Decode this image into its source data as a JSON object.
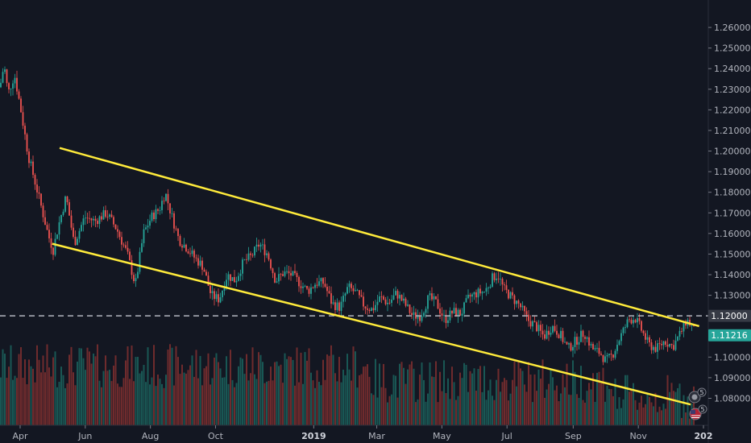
{
  "chart_data": {
    "type": "candlestick",
    "title": "",
    "y_axis": {
      "position": "right",
      "ticks": [
        "1.26000",
        "1.25000",
        "1.24000",
        "1.23000",
        "1.22000",
        "1.21000",
        "1.20000",
        "1.19000",
        "1.18000",
        "1.17000",
        "1.16000",
        "1.15000",
        "1.14000",
        "1.13000",
        "1.12000",
        "1.11000",
        "1.10000",
        "1.09000",
        "1.08000"
      ],
      "ylim": [
        1.0755,
        1.2655
      ]
    },
    "x_axis": {
      "ticks": [
        {
          "label": "Apr",
          "bold": false
        },
        {
          "label": "Jun",
          "bold": false
        },
        {
          "label": "Aug",
          "bold": false
        },
        {
          "label": "Oct",
          "bold": false
        },
        {
          "label": "2019",
          "bold": true
        },
        {
          "label": "Mar",
          "bold": false
        },
        {
          "label": "May",
          "bold": false
        },
        {
          "label": "Jul",
          "bold": false
        },
        {
          "label": "Sep",
          "bold": false
        },
        {
          "label": "Nov",
          "bold": false
        },
        {
          "label": "202",
          "bold": true
        }
      ]
    },
    "price_anchors": [
      [
        0,
        1.231
      ],
      [
        5,
        1.242
      ],
      [
        10,
        1.228
      ],
      [
        18,
        1.237
      ],
      [
        25,
        1.222
      ],
      [
        35,
        1.198
      ],
      [
        48,
        1.178
      ],
      [
        60,
        1.159
      ],
      [
        66,
        1.152
      ],
      [
        72,
        1.163
      ],
      [
        82,
        1.178
      ],
      [
        92,
        1.155
      ],
      [
        105,
        1.168
      ],
      [
        118,
        1.166
      ],
      [
        132,
        1.17
      ],
      [
        145,
        1.162
      ],
      [
        158,
        1.15
      ],
      [
        168,
        1.135
      ],
      [
        178,
        1.16
      ],
      [
        188,
        1.168
      ],
      [
        198,
        1.172
      ],
      [
        205,
        1.18
      ],
      [
        212,
        1.17
      ],
      [
        222,
        1.157
      ],
      [
        232,
        1.153
      ],
      [
        242,
        1.148
      ],
      [
        252,
        1.144
      ],
      [
        262,
        1.13
      ],
      [
        272,
        1.128
      ],
      [
        282,
        1.14
      ],
      [
        292,
        1.137
      ],
      [
        302,
        1.146
      ],
      [
        312,
        1.149
      ],
      [
        322,
        1.155
      ],
      [
        332,
        1.15
      ],
      [
        342,
        1.137
      ],
      [
        352,
        1.141
      ],
      [
        362,
        1.14
      ],
      [
        372,
        1.136
      ],
      [
        382,
        1.132
      ],
      [
        392,
        1.136
      ],
      [
        402,
        1.136
      ],
      [
        412,
        1.126
      ],
      [
        422,
        1.124
      ],
      [
        432,
        1.134
      ],
      [
        442,
        1.131
      ],
      [
        452,
        1.125
      ],
      [
        462,
        1.123
      ],
      [
        472,
        1.129
      ],
      [
        482,
        1.126
      ],
      [
        492,
        1.131
      ],
      [
        502,
        1.126
      ],
      [
        512,
        1.12
      ],
      [
        522,
        1.12
      ],
      [
        532,
        1.129
      ],
      [
        542,
        1.126
      ],
      [
        552,
        1.118
      ],
      [
        562,
        1.122
      ],
      [
        572,
        1.121
      ],
      [
        582,
        1.129
      ],
      [
        592,
        1.131
      ],
      [
        602,
        1.132
      ],
      [
        612,
        1.139
      ],
      [
        618,
        1.14
      ],
      [
        625,
        1.133
      ],
      [
        635,
        1.129
      ],
      [
        645,
        1.125
      ],
      [
        655,
        1.118
      ],
      [
        665,
        1.115
      ],
      [
        675,
        1.11
      ],
      [
        685,
        1.115
      ],
      [
        695,
        1.111
      ],
      [
        705,
        1.104
      ],
      [
        715,
        1.108
      ],
      [
        725,
        1.112
      ],
      [
        735,
        1.104
      ],
      [
        745,
        1.102
      ],
      [
        752,
        1.098
      ],
      [
        760,
        1.101
      ],
      [
        770,
        1.11
      ],
      [
        780,
        1.118
      ],
      [
        788,
        1.119
      ],
      [
        795,
        1.114
      ],
      [
        805,
        1.106
      ],
      [
        815,
        1.104
      ],
      [
        825,
        1.108
      ],
      [
        835,
        1.105
      ],
      [
        845,
        1.112
      ],
      [
        852,
        1.118
      ],
      [
        857,
        1.116
      ],
      [
        862,
        1.112
      ]
    ],
    "levels": [
      {
        "name": "resistance",
        "price": 1.12
      },
      {
        "name": "last_price",
        "price": 1.11216
      }
    ],
    "trendlines": [
      {
        "p1": {
          "date": "2018-05-08",
          "price": 1.2015
        },
        "p2": {
          "date": "2019-12-28",
          "price": 1.115
        }
      },
      {
        "p1": {
          "date": "2018-05-01",
          "price": 1.155
        },
        "p2": {
          "date": "2019-12-20",
          "price": 1.077
        }
      }
    ],
    "colors": {
      "background": "#131722",
      "up": "#26a69a",
      "down": "#ef5350",
      "vol_up": "#1b5e5a",
      "vol_down": "#7a2d2f",
      "trendline": "#ffeb3b",
      "dashed": "#b2b5be",
      "axis_text": "#b2b5be",
      "last_price_bg": "#26a69a",
      "resistance_bg": "#363a45"
    }
  },
  "price_tags": {
    "resistance": "1.12000",
    "last_price": "1.11216"
  },
  "badges": [
    {
      "icon": "event-dividend-icon",
      "count": "5"
    },
    {
      "icon": "flag-us-icon",
      "count": "5"
    }
  ]
}
